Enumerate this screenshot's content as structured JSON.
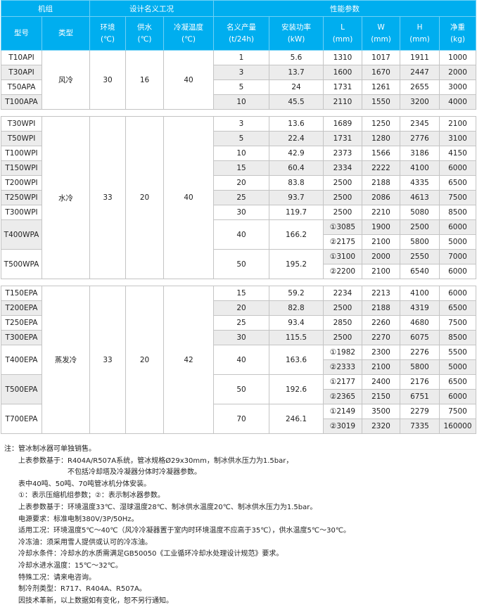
{
  "header": {
    "group1": "机组",
    "group2": "设计名义工况",
    "group3": "性能参数",
    "cols": [
      [
        "型号",
        ""
      ],
      [
        "类型",
        ""
      ],
      [
        "环境",
        "(℃)"
      ],
      [
        "供水",
        "(℃)"
      ],
      [
        "冷凝温度",
        "(℃)"
      ],
      [
        "名义产量",
        "(t/24h)"
      ],
      [
        "安装功率",
        "(kW)"
      ],
      [
        "L",
        "(mm)"
      ],
      [
        "W",
        "(mm)"
      ],
      [
        "H",
        "(mm)"
      ],
      [
        "净重",
        "(kg)"
      ]
    ]
  },
  "colors": {
    "header": "#00aeef",
    "stripe": "#ececec"
  },
  "sections": [
    {
      "type": "风冷",
      "ambient": "30",
      "supply": "16",
      "condense": "40",
      "models": [
        {
          "model": "T10API",
          "output": "1",
          "power": "5.6",
          "rows": [
            [
              "1310",
              "1017",
              "1911",
              "1000"
            ]
          ]
        },
        {
          "model": "T30API",
          "output": "3",
          "power": "13.7",
          "rows": [
            [
              "1600",
              "1670",
              "2447",
              "2000"
            ]
          ]
        },
        {
          "model": "T50APA",
          "output": "5",
          "power": "24",
          "rows": [
            [
              "1731",
              "1261",
              "2655",
              "3000"
            ]
          ]
        },
        {
          "model": "T100APA",
          "output": "10",
          "power": "45.5",
          "rows": [
            [
              "2110",
              "1550",
              "3200",
              "4000"
            ]
          ]
        }
      ]
    },
    {
      "type": "水冷",
      "ambient": "33",
      "supply": "20",
      "condense": "40",
      "models": [
        {
          "model": "T30WPI",
          "output": "3",
          "power": "13.6",
          "rows": [
            [
              "1689",
              "1250",
              "2345",
              "2100"
            ]
          ]
        },
        {
          "model": "T50WPI",
          "output": "5",
          "power": "22.4",
          "rows": [
            [
              "1731",
              "1280",
              "2776",
              "3100"
            ]
          ]
        },
        {
          "model": "T100WPI",
          "output": "10",
          "power": "42.9",
          "rows": [
            [
              "2373",
              "1566",
              "3186",
              "4150"
            ]
          ]
        },
        {
          "model": "T150WPI",
          "output": "15",
          "power": "60.4",
          "rows": [
            [
              "2334",
              "2222",
              "4100",
              "6000"
            ]
          ]
        },
        {
          "model": "T200WPI",
          "output": "20",
          "power": "83.8",
          "rows": [
            [
              "2500",
              "2188",
              "4335",
              "6500"
            ]
          ]
        },
        {
          "model": "T250WPI",
          "output": "25",
          "power": "93.7",
          "rows": [
            [
              "2500",
              "2086",
              "4613",
              "7500"
            ]
          ]
        },
        {
          "model": "T300WPI",
          "output": "30",
          "power": "119.7",
          "rows": [
            [
              "2500",
              "2210",
              "5080",
              "8500"
            ]
          ]
        },
        {
          "model": "T400WPA",
          "output": "40",
          "power": "166.2",
          "rows": [
            [
              "①3085",
              "1900",
              "2500",
              "6000"
            ],
            [
              "②2175",
              "2100",
              "5800",
              "5000"
            ]
          ]
        },
        {
          "model": "T500WPA",
          "output": "50",
          "power": "195.2",
          "rows": [
            [
              "①3100",
              "2000",
              "2550",
              "7000"
            ],
            [
              "②2200",
              "2100",
              "6540",
              "6000"
            ]
          ]
        }
      ]
    },
    {
      "type": "蒸发冷",
      "ambient": "33",
      "supply": "20",
      "condense": "42",
      "models": [
        {
          "model": "T150EPA",
          "output": "15",
          "power": "59.2",
          "rows": [
            [
              "2234",
              "2213",
              "4100",
              "6000"
            ]
          ]
        },
        {
          "model": "T200EPA",
          "output": "20",
          "power": "82.8",
          "rows": [
            [
              "2500",
              "2188",
              "4319",
              "6500"
            ]
          ]
        },
        {
          "model": "T250EPA",
          "output": "25",
          "power": "93.4",
          "rows": [
            [
              "2850",
              "2260",
              "4680",
              "7500"
            ]
          ]
        },
        {
          "model": "T300EPA",
          "output": "30",
          "power": "115.5",
          "rows": [
            [
              "2500",
              "2270",
              "6075",
              "8500"
            ]
          ]
        },
        {
          "model": "T400EPA",
          "output": "40",
          "power": "163.6",
          "rows": [
            [
              "①1982",
              "2300",
              "2276",
              "5500"
            ],
            [
              "②2333",
              "2100",
              "5800",
              "5000"
            ]
          ]
        },
        {
          "model": "T500EPA",
          "output": "50",
          "power": "192.6",
          "rows": [
            [
              "①2177",
              "2400",
              "2176",
              "6500"
            ],
            [
              "②2365",
              "2150",
              "6751",
              "6000"
            ]
          ]
        },
        {
          "model": "T700EPA",
          "output": "70",
          "power": "246.1",
          "rows": [
            [
              "①2149",
              "3500",
              "2279",
              "7500"
            ],
            [
              "②3019",
              "2320",
              "7335",
              "160000"
            ]
          ]
        }
      ]
    }
  ],
  "notes": {
    "label": "注：",
    "lines": [
      "管冰制冰器可单独销售。",
      "上表参数基于：R404A/R507A系统，管冰规格Ø29x30mm，制冰供水压力为1.5bar，",
      "不包括冷却塔及冷凝器分体时冷凝器参数。",
      "表中40吨、50吨、70吨管冰机分体安装。",
      "①：表示压缩机组参数；②：表示制冰器参数。",
      "上表参数基于：环境温度33℃、湿球温度28℃、制冰供水温度20℃、制冰供水压力为1.5bar。",
      "电源要求：标准电制380V/3P/50Hz。",
      "适用工况：环境温度5℃～40℃（风冷冷凝器置于室内时环境温度不应高于35℃），供水温度5℃～30℃。",
      "冷冻油：须采用雪人提供或认可的冷冻油。",
      "冷却水条件：冷却水的水质需满足GB50050《工业循环冷却水处理设计规范》要求。",
      "冷却水进水温度：15℃～32℃。",
      "特殊工况：请来电咨询。",
      "制冷剂类型：R717、R404A、R507A。",
      "因技术革新，以上数据如有变化，恕不另行通知。"
    ]
  }
}
